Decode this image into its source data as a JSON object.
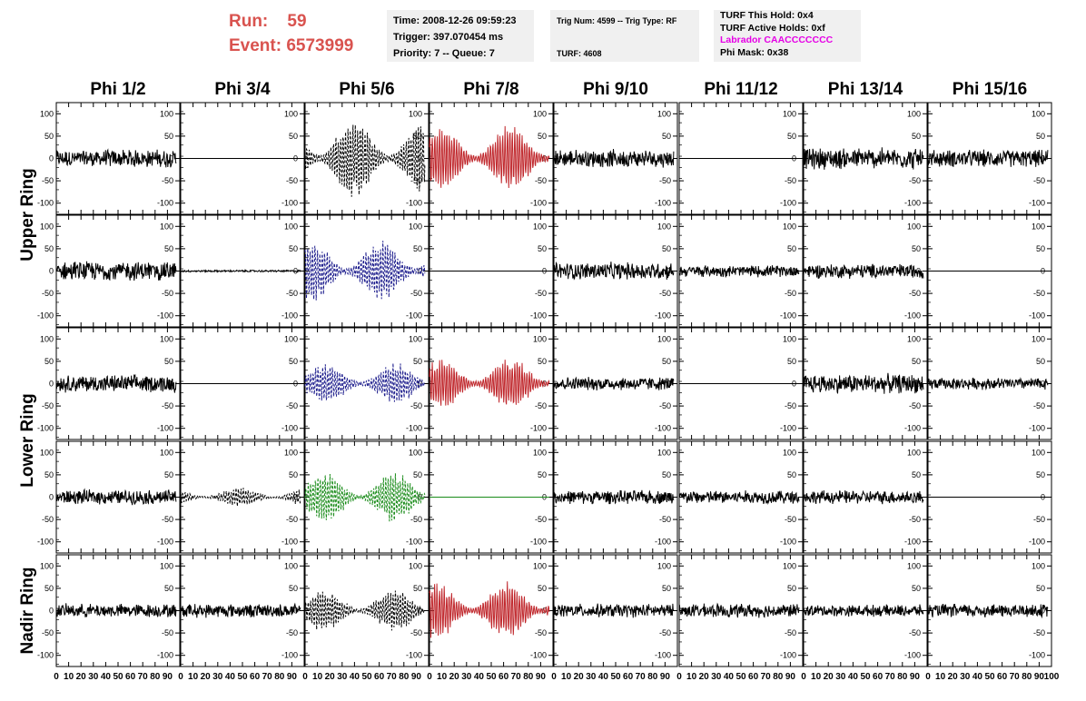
{
  "header": {
    "run_label": "Run:",
    "run_value": "59",
    "event_label": "Event:",
    "event_value": "6573999",
    "time": "Time: 2008-12-26 09:59:23",
    "trigger": "Trigger: 397.070454 ms",
    "priority": "Priority: 7 -- Queue: 7",
    "trig_num": "Trig Num: 4599 -- Trig Type: RF",
    "turf": "TURF: 4608",
    "turf_this_hold": "TURF This Hold: 0x4",
    "turf_active_holds": "TURF Active Holds: 0xf",
    "labrador": "Labrador CAACCCCCCC",
    "phi_mask": "Phi Mask: 0x38"
  },
  "colors": {
    "red_text": "#d9534f",
    "labrador": "#e600e6",
    "trace_black": "#000000",
    "trace_red": "#c0282d",
    "trace_blue": "#1c1c8c",
    "trace_green": "#1a8c1a",
    "info_bg": "#f0f0f0"
  },
  "chart_data": {
    "type": "line",
    "columns": [
      "Phi 1/2",
      "Phi 3/4",
      "Phi 5/6",
      "Phi 7/8",
      "Phi 9/10",
      "Phi 11/12",
      "Phi 13/14",
      "Phi 15/16"
    ],
    "rows": [
      {
        "group": "Upper Ring",
        "name": "row-1"
      },
      {
        "group": "Upper Ring",
        "name": "row-2"
      },
      {
        "group": "Lower Ring",
        "name": "row-3"
      },
      {
        "group": "Lower Ring",
        "name": "row-4"
      },
      {
        "group": "Nadir Ring",
        "name": "row-5"
      }
    ],
    "ring_labels": [
      "Upper Ring",
      "Lower Ring",
      "Nadir Ring"
    ],
    "xlim": [
      0,
      100
    ],
    "ylim": [
      -125,
      125
    ],
    "x_ticks": [
      0,
      10,
      20,
      30,
      40,
      50,
      60,
      70,
      80,
      90,
      100
    ],
    "x_tick_labels": [
      "0",
      "10",
      "20",
      "30",
      "40",
      "50",
      "60",
      "70",
      "80",
      "90",
      "100"
    ],
    "y_ticks": [
      100,
      50,
      0,
      -50,
      -100
    ],
    "y_tick_labels": [
      "100",
      "50",
      "0",
      "-50",
      "-100"
    ],
    "trace_x_range": [
      0,
      97
    ],
    "traces": [
      [
        "noise:18:black",
        "flat:black",
        "wave:75:black:dashed",
        "wave:65:red",
        "noise:18:black",
        "flat:black",
        "noise:22:black",
        "noise:18:black"
      ],
      [
        "noise:20:black",
        "noise:2:black",
        "wave:60:blue:dashed",
        "flat:black",
        "noise:18:black",
        "noise:12:black",
        "noise:15:black",
        "flat:black"
      ],
      [
        "noise:18:black",
        "flat:black",
        "wave:40:blue:dashed",
        "wave:50:red",
        "noise:14:black",
        "flat:black",
        "noise:20:black",
        "noise:12:black"
      ],
      [
        "noise:15:black",
        "wave:18:black:dashed",
        "wave:50:green:dashed",
        "flat:green",
        "noise:14:black",
        "noise:14:black",
        "noise:14:black",
        "flat:black"
      ],
      [
        "noise:14:black",
        "noise:14:black",
        "wave:40:black:dashed",
        "wave:55:red",
        "noise:14:black",
        "noise:14:black",
        "noise:12:black",
        "noise:14:black"
      ]
    ]
  }
}
